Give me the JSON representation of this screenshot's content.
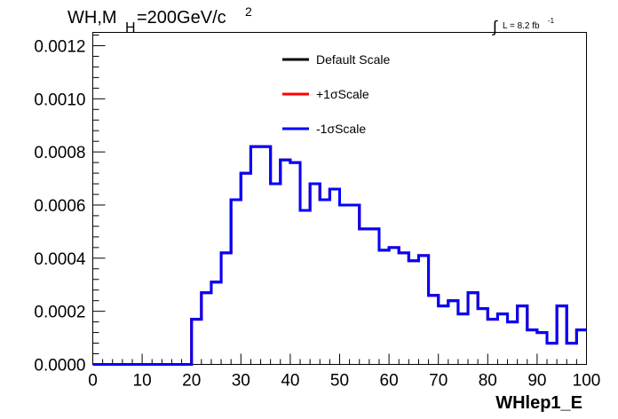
{
  "chart_data": {
    "type": "line",
    "title_main": "WH,M",
    "title_sub": "H",
    "title_rest": "=200GeV/c",
    "title_sup": "2",
    "lumi_label": "L = 8.2 fb",
    "lumi_sup": "-1",
    "lumi_integral": "∫",
    "xlabel": "WHlep1_E",
    "xlim": [
      0,
      100
    ],
    "ylim": [
      0,
      0.00125
    ],
    "x_ticks": [
      "0",
      "10",
      "20",
      "30",
      "40",
      "50",
      "60",
      "70",
      "80",
      "90",
      "100"
    ],
    "y_ticks": [
      "0.0000",
      "0.0002",
      "0.0004",
      "0.0006",
      "0.0008",
      "0.0010",
      "0.0012"
    ],
    "legend_placement": "top-right",
    "bin_edges": [
      0,
      2,
      4,
      6,
      8,
      10,
      12,
      14,
      16,
      18,
      20,
      22,
      24,
      26,
      28,
      30,
      32,
      34,
      36,
      38,
      40,
      42,
      44,
      46,
      48,
      50,
      52,
      54,
      56,
      58,
      60,
      62,
      64,
      66,
      68,
      70,
      72,
      74,
      76,
      78,
      80,
      82,
      84,
      86,
      88,
      90,
      92,
      94,
      96,
      98,
      100
    ],
    "series": [
      {
        "name": "Default Scale",
        "color": "#000000",
        "values": [
          0,
          0,
          0,
          0,
          0,
          0,
          0,
          0,
          0,
          0,
          0.00017,
          0.00027,
          0.00031,
          0.00042,
          0.00062,
          0.00072,
          0.00082,
          0.00082,
          0.00068,
          0.00077,
          0.00076,
          0.00058,
          0.00068,
          0.00062,
          0.00066,
          0.0006,
          0.0006,
          0.00051,
          0.00051,
          0.00043,
          0.00044,
          0.00042,
          0.00039,
          0.00041,
          0.00026,
          0.00022,
          0.00024,
          0.00019,
          0.00027,
          0.00021,
          0.00017,
          0.00019,
          0.00016,
          0.00022,
          0.00013,
          0.00012,
          8e-05,
          0.00022,
          8e-05,
          0.00013
        ]
      },
      {
        "name": "+1σScale",
        "color": "#ff0000",
        "values": [
          0,
          0,
          0,
          0,
          0,
          0,
          0,
          0,
          0,
          0,
          0.00017,
          0.00027,
          0.00031,
          0.00042,
          0.00062,
          0.00072,
          0.00082,
          0.00082,
          0.00068,
          0.00077,
          0.00076,
          0.00058,
          0.00068,
          0.00062,
          0.00066,
          0.0006,
          0.0006,
          0.00051,
          0.00051,
          0.00043,
          0.00044,
          0.00042,
          0.00039,
          0.00041,
          0.00026,
          0.00022,
          0.00024,
          0.00019,
          0.00027,
          0.00021,
          0.00017,
          0.00019,
          0.00016,
          0.00022,
          0.00013,
          0.00012,
          8e-05,
          0.00022,
          8e-05,
          0.00013
        ]
      },
      {
        "name": "-1σScale",
        "color": "#0000ff",
        "values": [
          0,
          0,
          0,
          0,
          0,
          0,
          0,
          0,
          0,
          0,
          0.00017,
          0.00027,
          0.00031,
          0.00042,
          0.00062,
          0.00072,
          0.00082,
          0.00082,
          0.00068,
          0.00077,
          0.00076,
          0.00058,
          0.00068,
          0.00062,
          0.00066,
          0.0006,
          0.0006,
          0.00051,
          0.00051,
          0.00043,
          0.00044,
          0.00042,
          0.00039,
          0.00041,
          0.00026,
          0.00022,
          0.00024,
          0.00019,
          0.00027,
          0.00021,
          0.00017,
          0.00019,
          0.00016,
          0.00022,
          0.00013,
          0.00012,
          8e-05,
          0.00022,
          8e-05,
          0.00013
        ]
      }
    ]
  }
}
